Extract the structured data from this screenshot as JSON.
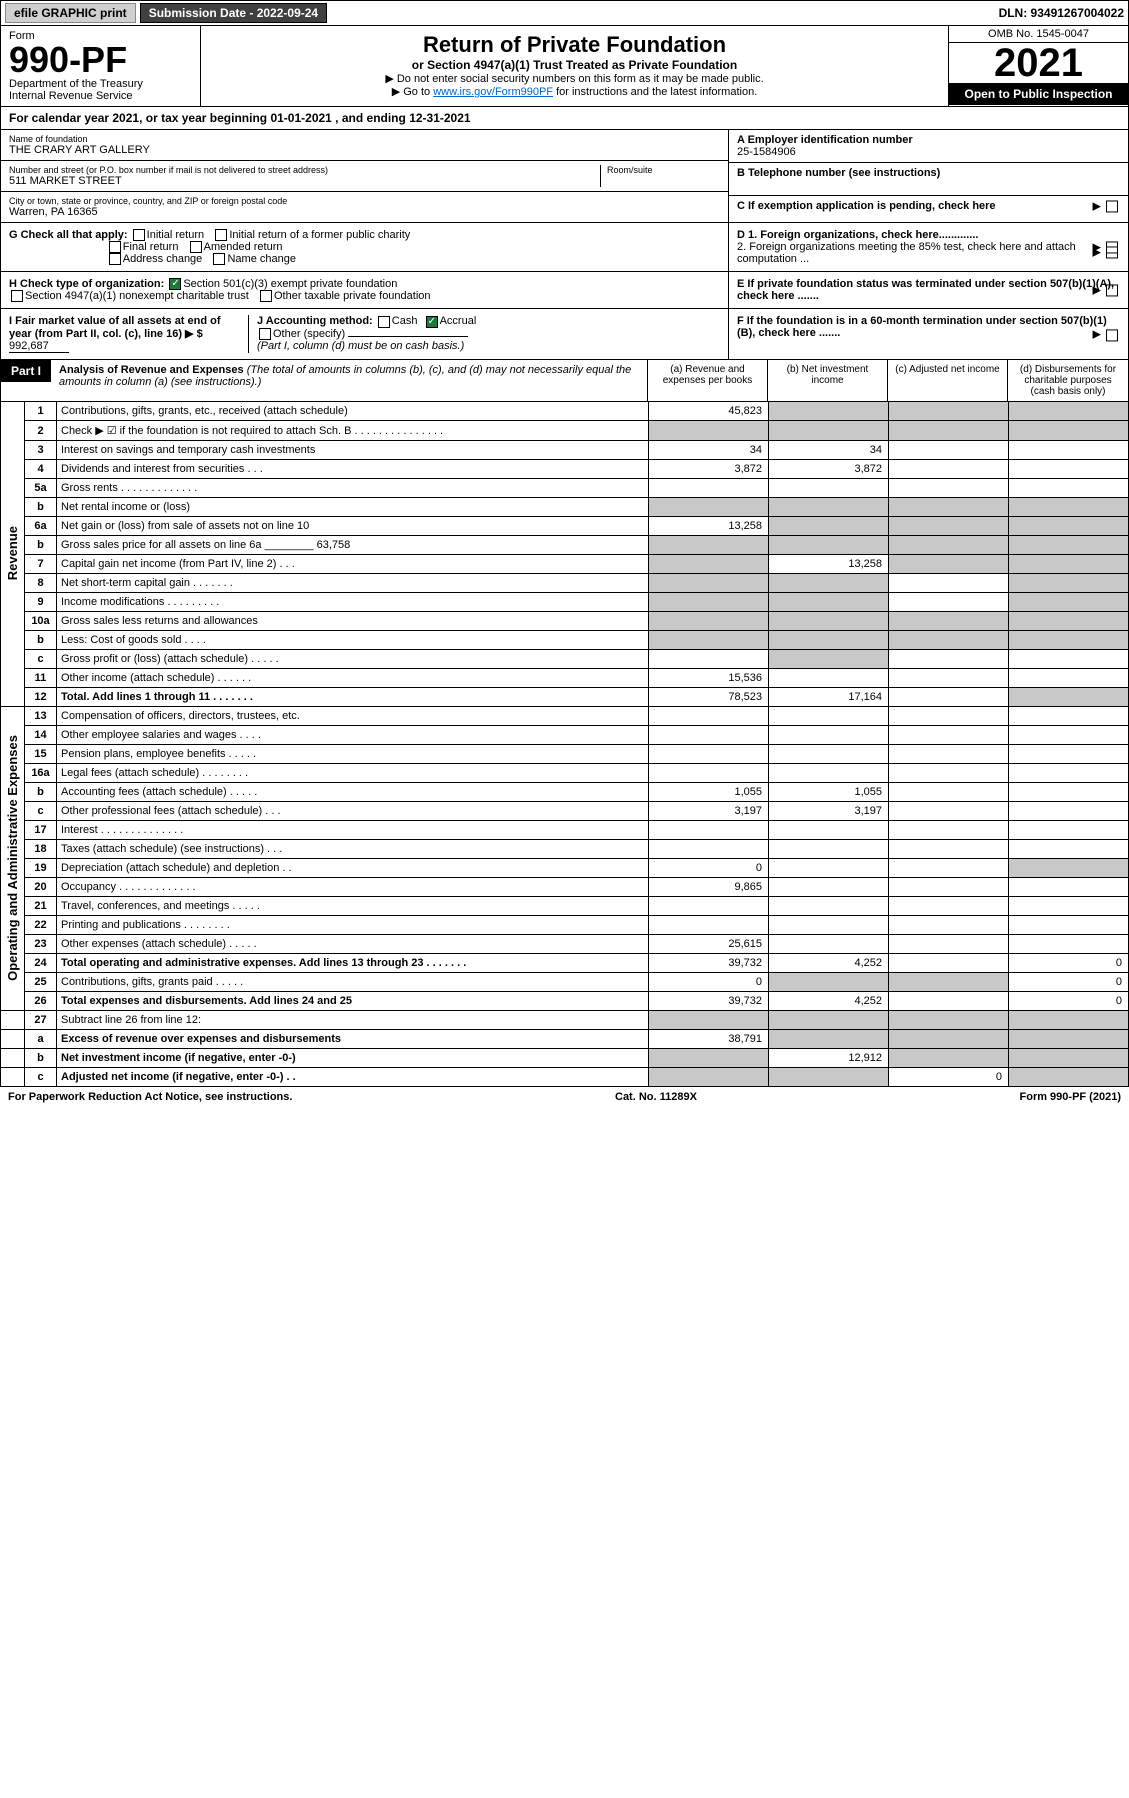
{
  "topbar": {
    "efile": "efile GRAPHIC print",
    "submission_label": "Submission Date - 2022-09-24",
    "dln": "DLN: 93491267004022"
  },
  "header": {
    "form_word": "Form",
    "form_no": "990-PF",
    "dept": "Department of the Treasury",
    "irs": "Internal Revenue Service",
    "title": "Return of Private Foundation",
    "subtitle": "or Section 4947(a)(1) Trust Treated as Private Foundation",
    "note1": "▶ Do not enter social security numbers on this form as it may be made public.",
    "note2_pre": "▶ Go to ",
    "note2_link": "www.irs.gov/Form990PF",
    "note2_post": " for instructions and the latest information.",
    "omb": "OMB No. 1545-0047",
    "year": "2021",
    "inspect": "Open to Public Inspection"
  },
  "calendar": {
    "text_pre": "For calendar year 2021, or tax year beginning ",
    "begin": "01-01-2021",
    "mid": " , and ending ",
    "end": "12-31-2021"
  },
  "info": {
    "name_lbl": "Name of foundation",
    "name": "THE CRARY ART GALLERY",
    "addr_lbl": "Number and street (or P.O. box number if mail is not delivered to street address)",
    "addr": "511 MARKET STREET",
    "room_lbl": "Room/suite",
    "city_lbl": "City or town, state or province, country, and ZIP or foreign postal code",
    "city": "Warren, PA  16365",
    "ein_lbl": "A Employer identification number",
    "ein": "25-1584906",
    "phone_lbl": "B Telephone number (see instructions)",
    "c_lbl": "C If exemption application is pending, check here",
    "g_lbl": "G Check all that apply:",
    "g_opts": [
      "Initial return",
      "Initial return of a former public charity",
      "Final return",
      "Amended return",
      "Address change",
      "Name change"
    ],
    "h_lbl": "H Check type of organization:",
    "h_1": "Section 501(c)(3) exempt private foundation",
    "h_2": "Section 4947(a)(1) nonexempt charitable trust",
    "h_3": "Other taxable private foundation",
    "i_lbl": "I Fair market value of all assets at end of year (from Part II, col. (c), line 16) ▶ $",
    "i_val": "992,687",
    "j_lbl": "J Accounting method:",
    "j_cash": "Cash",
    "j_accrual": "Accrual",
    "j_other": "Other (specify)",
    "j_note": "(Part I, column (d) must be on cash basis.)",
    "d1": "D 1. Foreign organizations, check here.............",
    "d2": "2. Foreign organizations meeting the 85% test, check here and attach computation ...",
    "e_lbl": "E If private foundation status was terminated under section 507(b)(1)(A), check here .......",
    "f_lbl": "F If the foundation is in a 60-month termination under section 507(b)(1)(B), check here ......."
  },
  "part1": {
    "label": "Part I",
    "title": "Analysis of Revenue and Expenses",
    "title_note": "(The total of amounts in columns (b), (c), and (d) may not necessarily equal the amounts in column (a) (see instructions).)",
    "col_a": "(a) Revenue and expenses per books",
    "col_b": "(b) Net investment income",
    "col_c": "(c) Adjusted net income",
    "col_d": "(d) Disbursements for charitable purposes (cash basis only)"
  },
  "vlabels": {
    "rev": "Revenue",
    "exp": "Operating and Administrative Expenses"
  },
  "lines": [
    {
      "sec": "rev",
      "no": "1",
      "desc": "Contributions, gifts, grants, etc., received (attach schedule)",
      "a": "45,823",
      "b": "",
      "c": "",
      "d": "",
      "shade_b": true,
      "shade_c": true,
      "shade_d": true
    },
    {
      "sec": "rev",
      "no": "2",
      "desc": "Check ▶ ☑ if the foundation is not required to attach Sch. B  . . . . . . . . . . . . . . .",
      "a": "",
      "shade_a": true,
      "shade_b": true,
      "shade_c": true,
      "shade_d": true
    },
    {
      "sec": "rev",
      "no": "3",
      "desc": "Interest on savings and temporary cash investments",
      "a": "34",
      "b": "34"
    },
    {
      "sec": "rev",
      "no": "4",
      "desc": "Dividends and interest from securities  . . .",
      "a": "3,872",
      "b": "3,872"
    },
    {
      "sec": "rev",
      "no": "5a",
      "desc": "Gross rents  . . . . . . . . . . . . ."
    },
    {
      "sec": "rev",
      "no": "b",
      "desc": "Net rental income or (loss)  ",
      "shade_a": true,
      "shade_b": true,
      "shade_c": true,
      "shade_d": true
    },
    {
      "sec": "rev",
      "no": "6a",
      "desc": "Net gain or (loss) from sale of assets not on line 10",
      "a": "13,258",
      "shade_b": true,
      "shade_c": true,
      "shade_d": true
    },
    {
      "sec": "rev",
      "no": "b",
      "desc": "Gross sales price for all assets on line 6a ________ 63,758",
      "shade_a": true,
      "shade_b": true,
      "shade_c": true,
      "shade_d": true
    },
    {
      "sec": "rev",
      "no": "7",
      "desc": "Capital gain net income (from Part IV, line 2) . . .",
      "shade_a": true,
      "b": "13,258",
      "shade_c": true,
      "shade_d": true
    },
    {
      "sec": "rev",
      "no": "8",
      "desc": "Net short-term capital gain  . . . . . . .",
      "shade_a": true,
      "shade_b": true,
      "shade_d": true
    },
    {
      "sec": "rev",
      "no": "9",
      "desc": "Income modifications . . . . . . . . .",
      "shade_a": true,
      "shade_b": true,
      "shade_d": true
    },
    {
      "sec": "rev",
      "no": "10a",
      "desc": "Gross sales less returns and allowances  ",
      "shade_a": true,
      "shade_b": true,
      "shade_c": true,
      "shade_d": true
    },
    {
      "sec": "rev",
      "no": "b",
      "desc": "Less: Cost of goods sold  . . . .  ",
      "shade_a": true,
      "shade_b": true,
      "shade_c": true,
      "shade_d": true
    },
    {
      "sec": "rev",
      "no": "c",
      "desc": "Gross profit or (loss) (attach schedule)  . . . . .",
      "shade_b": true
    },
    {
      "sec": "rev",
      "no": "11",
      "desc": "Other income (attach schedule)  . . . . . .",
      "a": "15,536"
    },
    {
      "sec": "rev",
      "no": "12",
      "desc": "Total. Add lines 1 through 11 . . . . . . .",
      "a": "78,523",
      "b": "17,164",
      "bold": true,
      "shade_d": true
    },
    {
      "sec": "exp",
      "no": "13",
      "desc": "Compensation of officers, directors, trustees, etc."
    },
    {
      "sec": "exp",
      "no": "14",
      "desc": "Other employee salaries and wages  . . . ."
    },
    {
      "sec": "exp",
      "no": "15",
      "desc": "Pension plans, employee benefits . . . . ."
    },
    {
      "sec": "exp",
      "no": "16a",
      "desc": "Legal fees (attach schedule) . . . . . . . ."
    },
    {
      "sec": "exp",
      "no": "b",
      "desc": "Accounting fees (attach schedule) . . . . .",
      "a": "1,055",
      "b": "1,055"
    },
    {
      "sec": "exp",
      "no": "c",
      "desc": "Other professional fees (attach schedule)  . . .",
      "a": "3,197",
      "b": "3,197"
    },
    {
      "sec": "exp",
      "no": "17",
      "desc": "Interest . . . . . . . . . . . . . ."
    },
    {
      "sec": "exp",
      "no": "18",
      "desc": "Taxes (attach schedule) (see instructions)  . . ."
    },
    {
      "sec": "exp",
      "no": "19",
      "desc": "Depreciation (attach schedule) and depletion  . .",
      "a": "0",
      "shade_d": true
    },
    {
      "sec": "exp",
      "no": "20",
      "desc": "Occupancy . . . . . . . . . . . . .",
      "a": "9,865"
    },
    {
      "sec": "exp",
      "no": "21",
      "desc": "Travel, conferences, and meetings . . . . ."
    },
    {
      "sec": "exp",
      "no": "22",
      "desc": "Printing and publications . . . . . . . ."
    },
    {
      "sec": "exp",
      "no": "23",
      "desc": "Other expenses (attach schedule) . . . . .",
      "a": "25,615"
    },
    {
      "sec": "exp",
      "no": "24",
      "desc": "Total operating and administrative expenses. Add lines 13 through 23  . . . . . . .",
      "a": "39,732",
      "b": "4,252",
      "d": "0",
      "bold": true
    },
    {
      "sec": "exp",
      "no": "25",
      "desc": "Contributions, gifts, grants paid  . . . . .",
      "a": "0",
      "shade_b": true,
      "shade_c": true,
      "d": "0"
    },
    {
      "sec": "exp",
      "no": "26",
      "desc": "Total expenses and disbursements. Add lines 24 and 25",
      "a": "39,732",
      "b": "4,252",
      "d": "0",
      "bold": true
    },
    {
      "sec": "",
      "no": "27",
      "desc": "Subtract line 26 from line 12:",
      "shade_a": true,
      "shade_b": true,
      "shade_c": true,
      "shade_d": true
    },
    {
      "sec": "",
      "no": "a",
      "desc": "Excess of revenue over expenses and disbursements",
      "a": "38,791",
      "bold": true,
      "shade_b": true,
      "shade_c": true,
      "shade_d": true
    },
    {
      "sec": "",
      "no": "b",
      "desc": "Net investment income (if negative, enter -0-)",
      "shade_a": true,
      "b": "12,912",
      "bold": true,
      "shade_c": true,
      "shade_d": true
    },
    {
      "sec": "",
      "no": "c",
      "desc": "Adjusted net income (if negative, enter -0-)  . .",
      "shade_a": true,
      "shade_b": true,
      "c": "0",
      "bold": true,
      "shade_d": true
    }
  ],
  "footer": {
    "left": "For Paperwork Reduction Act Notice, see instructions.",
    "mid": "Cat. No. 11289X",
    "right": "Form 990-PF (2021)"
  }
}
